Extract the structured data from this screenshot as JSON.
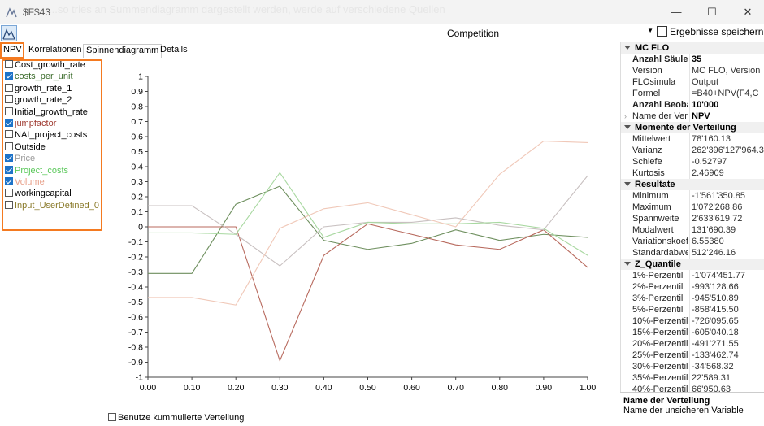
{
  "window": {
    "title": "$F$43",
    "ghost_text": "...so tries an Summendiagramm dargestellt werden, werde auf verschiedene Quellen",
    "minimize": "—",
    "maximize": "☐",
    "close": "✕"
  },
  "toolbar": {
    "simulation": "Competition",
    "save_label": "Ergebnisse speichern"
  },
  "tabs": [
    {
      "label": "NPV"
    },
    {
      "label": "Korrelationen"
    },
    {
      "label": "Spinnendiagramm"
    },
    {
      "label": "Details"
    }
  ],
  "variables": [
    {
      "label": "Cost_growth_rate",
      "checked": false,
      "color": "#000000"
    },
    {
      "label": "costs_per_unit",
      "checked": true,
      "color": "#3a6b2a"
    },
    {
      "label": "growth_rate_1",
      "checked": false,
      "color": "#000000"
    },
    {
      "label": "growth_rate_2",
      "checked": false,
      "color": "#000000"
    },
    {
      "label": "Initial_growth_rate",
      "checked": false,
      "color": "#000000"
    },
    {
      "label": "jumpfactor",
      "checked": true,
      "color": "#a03c32"
    },
    {
      "label": "NAI_project_costs",
      "checked": false,
      "color": "#000000"
    },
    {
      "label": "Outside",
      "checked": false,
      "color": "#000000"
    },
    {
      "label": "Price",
      "checked": true,
      "color": "#9a9a9a"
    },
    {
      "label": "Project_costs",
      "checked": true,
      "color": "#5ac85a"
    },
    {
      "label": "Volume",
      "checked": true,
      "color": "#e8a08a"
    },
    {
      "label": "workingcapital",
      "checked": false,
      "color": "#000000"
    },
    {
      "label": "Input_UserDefined_0",
      "checked": false,
      "color": "#8a7a2a"
    }
  ],
  "cumulative_checkbox": "Benutze kummulierte Verteilung",
  "chart_data": {
    "type": "line",
    "x": [
      0.0,
      0.1,
      0.2,
      0.3,
      0.4,
      0.5,
      0.6,
      0.7,
      0.8,
      0.9,
      1.0
    ],
    "x_tick_labels": [
      "0.00",
      "0.10",
      "0.20",
      "0.30",
      "0.40",
      "0.50",
      "0.60",
      "0.70",
      "0.80",
      "0.90",
      "1.00"
    ],
    "y_tick_labels": [
      "1",
      "0.9",
      "0.8",
      "0.7",
      "0.6",
      "0.5",
      "0.4",
      "0.3",
      "0.2",
      "0.1",
      "0",
      "-0.1",
      "-0.2",
      "-0.3",
      "-0.4",
      "-0.5",
      "-0.6",
      "-0.7",
      "-0.8",
      "-0.9",
      "-1"
    ],
    "xlim": [
      0,
      1
    ],
    "ylim": [
      -1,
      1
    ],
    "grid": false,
    "series": [
      {
        "name": "costs_per_unit",
        "color": "#6e8f5e",
        "values": [
          -0.31,
          -0.31,
          0.15,
          0.27,
          -0.09,
          -0.15,
          -0.11,
          -0.02,
          -0.09,
          -0.05,
          -0.07
        ]
      },
      {
        "name": "jumpfactor",
        "color": "#b86a5e",
        "values": [
          0.0,
          0.0,
          0.0,
          -0.89,
          -0.19,
          0.02,
          -0.05,
          -0.12,
          -0.15,
          -0.02,
          -0.27
        ]
      },
      {
        "name": "Price",
        "color": "#c8c0c0",
        "values": [
          0.14,
          0.14,
          -0.05,
          -0.26,
          0.0,
          0.03,
          0.03,
          0.06,
          0.01,
          -0.02,
          0.34
        ]
      },
      {
        "name": "Project_costs",
        "color": "#a8d8a0",
        "values": [
          -0.04,
          -0.04,
          -0.05,
          0.36,
          -0.07,
          0.03,
          0.02,
          0.02,
          0.03,
          -0.01,
          -0.19
        ]
      },
      {
        "name": "Volume",
        "color": "#f0c8b8",
        "values": [
          -0.47,
          -0.47,
          -0.52,
          -0.01,
          0.12,
          0.16,
          0.08,
          0.0,
          0.35,
          0.57,
          0.56
        ]
      }
    ]
  },
  "properties": {
    "sections": [
      {
        "title": "MC FLO",
        "rows": [
          {
            "k": "Anzahl Säuler",
            "v": "35",
            "kb": true,
            "vb": true
          },
          {
            "k": "Version",
            "v": "MC FLO, Version"
          },
          {
            "k": "FLOsimula",
            "v": "Output"
          },
          {
            "k": "Formel",
            "v": "=B40+NPV(F4,C"
          },
          {
            "k": "Anzahl Beoba",
            "v": "10'000",
            "kb": true,
            "vb": true
          },
          {
            "k": "Name der Ver",
            "v": "NPV",
            "vb": true,
            "expand": true
          }
        ]
      },
      {
        "title": "Momente der Verteilung",
        "rows": [
          {
            "k": "Mittelwert",
            "v": "78'160.13"
          },
          {
            "k": "Varianz",
            "v": "262'396'127'964.3"
          },
          {
            "k": "Schiefe",
            "v": "-0.52797"
          },
          {
            "k": "Kurtosis",
            "v": "2.46909"
          }
        ]
      },
      {
        "title": "Resultate",
        "rows": [
          {
            "k": "Minimum",
            "v": "-1'561'350.85"
          },
          {
            "k": "Maximum",
            "v": "1'072'268.86"
          },
          {
            "k": "Spannweite",
            "v": "2'633'619.72"
          },
          {
            "k": "Modalwert",
            "v": "131'690.39"
          },
          {
            "k": "Variationskoef",
            "v": "6.55380"
          },
          {
            "k": "Standardabwe",
            "v": "512'246.16"
          }
        ]
      },
      {
        "title": "Z_Quantile",
        "rows": [
          {
            "k": "1%-Perzentil",
            "v": "-1'074'451.77"
          },
          {
            "k": "2%-Perzentil",
            "v": "-993'128.66"
          },
          {
            "k": "3%-Perzentil",
            "v": "-945'510.89"
          },
          {
            "k": "5%-Perzentil",
            "v": "-858'415.50"
          },
          {
            "k": "10%-Perzentil",
            "v": "-726'095.65"
          },
          {
            "k": "15%-Perzentil",
            "v": "-605'040.18"
          },
          {
            "k": "20%-Perzentil",
            "v": "-491'271.55"
          },
          {
            "k": "25%-Perzentil",
            "v": "-133'462.74"
          },
          {
            "k": "30%-Perzentil",
            "v": "-34'568.32"
          },
          {
            "k": "35%-Perzentil",
            "v": "22'589.31"
          },
          {
            "k": "40%-Perzentil",
            "v": "66'950.63"
          }
        ]
      }
    ]
  },
  "description": {
    "title": "Name der Verteilung",
    "text": "Name der unsicheren Variable"
  }
}
